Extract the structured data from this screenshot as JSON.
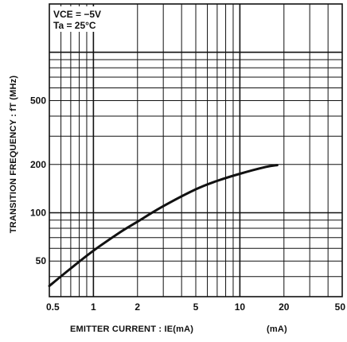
{
  "chart_data": {
    "type": "line",
    "x_scale": "log",
    "y_scale": "log",
    "xlim": [
      0.5,
      50
    ],
    "ylim": [
      30,
      2000
    ],
    "xlabel": "EMITTER CURRENT : IE(mA)",
    "xlabel_unit": "(mA)",
    "ylabel": "TRANSITION FREQUENCY : fT (MHz)",
    "x_ticks": [
      0.5,
      1,
      2,
      5,
      10,
      20,
      50
    ],
    "x_tick_labels": [
      "0.5",
      "1",
      "2",
      "5",
      "10",
      "20",
      "50"
    ],
    "y_ticks": [
      50,
      100,
      200,
      500
    ],
    "y_tick_labels": [
      "50",
      "100",
      "200",
      "500"
    ],
    "grid": true,
    "conditions": [
      "VCE = −5V",
      "Ta = 25°C"
    ],
    "series": [
      {
        "x": [
          0.5,
          0.7,
          1,
          1.5,
          2,
          3,
          5,
          7,
          10,
          15,
          18
        ],
        "y": [
          35,
          45,
          58,
          75,
          88,
          110,
          140,
          158,
          175,
          193,
          198
        ]
      }
    ]
  },
  "colors": {
    "ink": "#111111",
    "background": "#ffffff"
  }
}
